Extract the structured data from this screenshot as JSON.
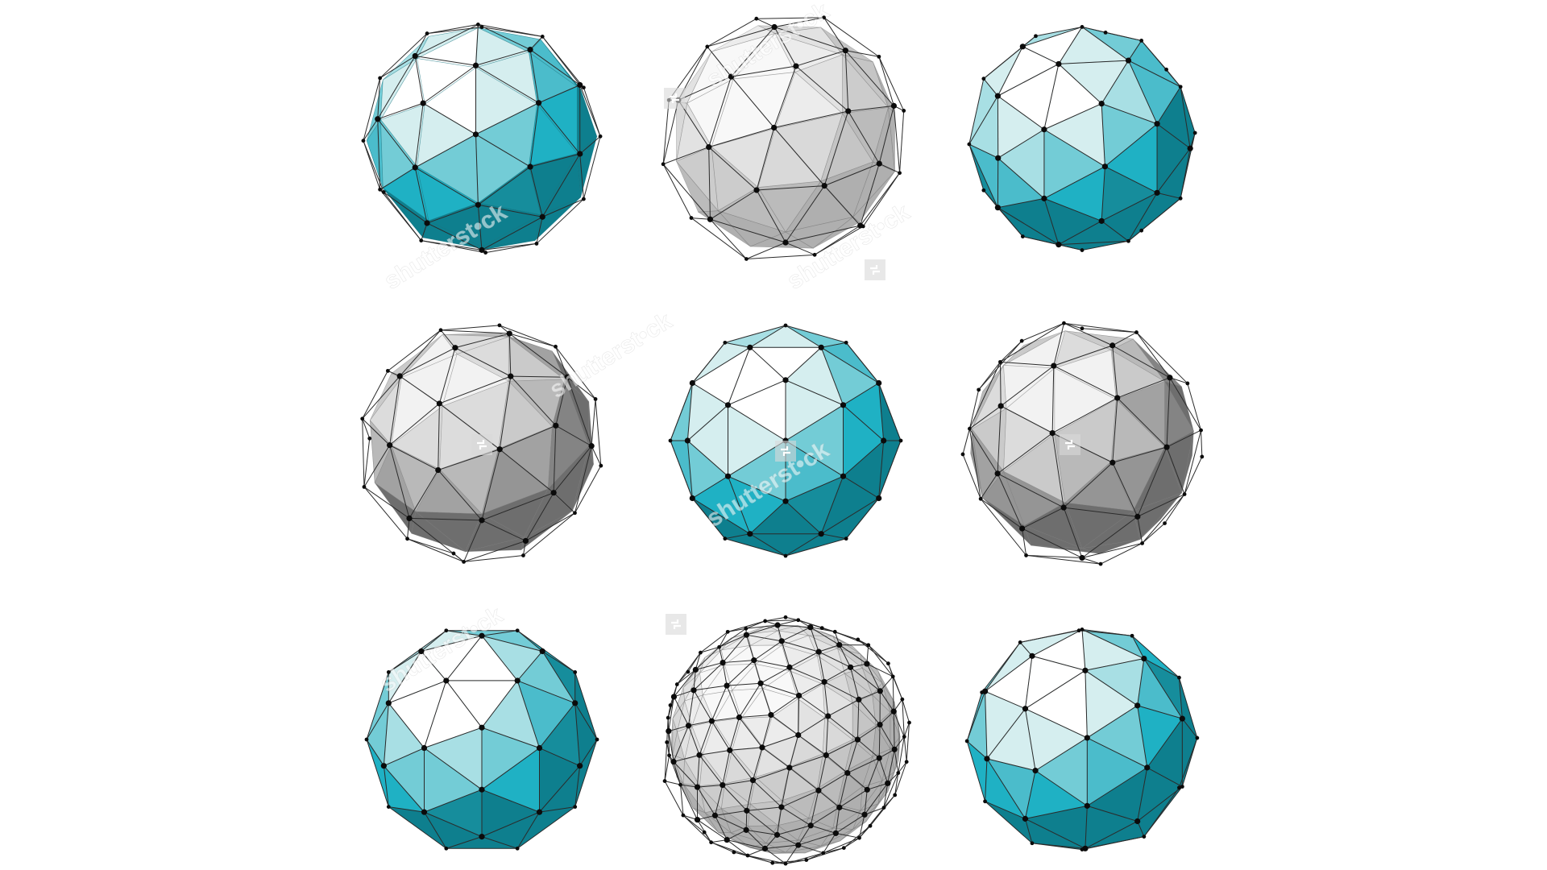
{
  "scene": {
    "subject": "low-poly geometric spheres",
    "grid": "3x3",
    "palette": {
      "background": "#ffffff",
      "teal_dark": "#0e7f8e",
      "teal": "#1fb1c4",
      "teal_light": "#73ccd6",
      "ice": "#d5eeef",
      "gray_dark": "#6e6e6e",
      "gray": "#a2a2a2",
      "gray_light": "#dcdcdc",
      "wire": "#2b2b2b",
      "node": "#0b0b0b"
    },
    "spheres": [
      {
        "style": "teal-solid-wire"
      },
      {
        "style": "gray-transparent-wire"
      },
      {
        "style": "teal-solid"
      },
      {
        "style": "gray-solid-wire"
      },
      {
        "style": "teal-solid-ringed"
      },
      {
        "style": "gray-buckyball-wire"
      },
      {
        "style": "teal-solid-wire"
      },
      {
        "style": "gray-transparent-dense-wire"
      },
      {
        "style": "teal-buckyball-wire"
      }
    ]
  },
  "watermark": {
    "brand": "shutterstock",
    "text": "shutterst•ck"
  }
}
